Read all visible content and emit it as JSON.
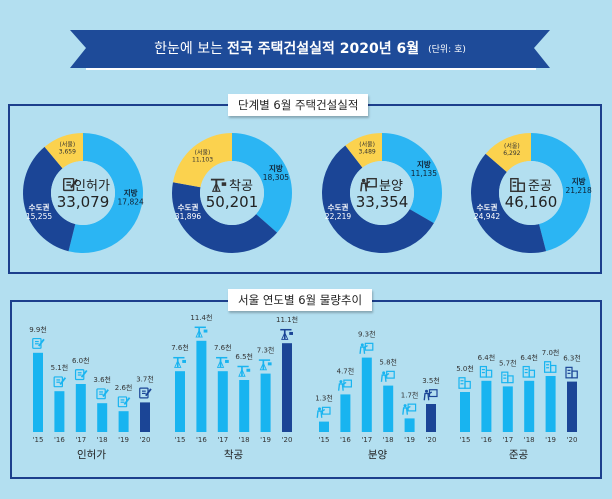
{
  "header": {
    "prefix": "한눈에 보는",
    "bold": "전국 주택건설실적 2020년 6월",
    "unit": "(단위: 호)"
  },
  "colors": {
    "local": "#2bb5f3",
    "capital": "#1b4596",
    "seoul": "#fbd24e",
    "bar": "#18b4f0",
    "bar_current": "#1b4596",
    "frame": "#1c3f8c",
    "background": "#b3dff0"
  },
  "section1_title": "단계별 6월 주택건설실적",
  "section2_title": "서울 연도별 6월 물량추이",
  "chart_data": [
    {
      "type": "pie",
      "donut": true,
      "title": "인허가",
      "icon": "document-pen-icon",
      "total": "33,079",
      "slices": [
        {
          "name": "지방",
          "value": 17824,
          "label": "17,824"
        },
        {
          "name": "수도권",
          "value": 15255,
          "label": "15,255"
        },
        {
          "name": "(서울)",
          "value": 3659,
          "label": "3,659",
          "subset_of": "수도권"
        }
      ]
    },
    {
      "type": "pie",
      "donut": true,
      "title": "착공",
      "icon": "crane-icon",
      "total": "50,201",
      "slices": [
        {
          "name": "지방",
          "value": 18305,
          "label": "18,305"
        },
        {
          "name": "수도권",
          "value": 31896,
          "label": "31,896"
        },
        {
          "name": "(서울)",
          "value": 11103,
          "label": "11,103",
          "subset_of": "수도권"
        }
      ]
    },
    {
      "type": "pie",
      "donut": true,
      "title": "분양",
      "icon": "presentation-icon",
      "total": "33,354",
      "slices": [
        {
          "name": "지방",
          "value": 11135,
          "label": "11,135"
        },
        {
          "name": "수도권",
          "value": 22219,
          "label": "22,219"
        },
        {
          "name": "(서울)",
          "value": 3489,
          "label": "3,489",
          "subset_of": "수도권"
        }
      ]
    },
    {
      "type": "pie",
      "donut": true,
      "title": "준공",
      "icon": "building-icon",
      "total": "46,160",
      "slices": [
        {
          "name": "지방",
          "value": 21218,
          "label": "21,218"
        },
        {
          "name": "수도권",
          "value": 24942,
          "label": "24,942"
        },
        {
          "name": "(서울)",
          "value": 6292,
          "label": "6,292",
          "subset_of": "수도권"
        }
      ]
    },
    {
      "type": "bar",
      "title": "인허가",
      "icon": "document-pen-icon",
      "categories": [
        "'15",
        "'16",
        "'17",
        "'18",
        "'19",
        "'20"
      ],
      "values": [
        9.9,
        5.1,
        6.0,
        3.6,
        2.6,
        3.7
      ],
      "labels": [
        "9.9천",
        "5.1천",
        "6.0천",
        "3.6천",
        "2.6천",
        "3.7천"
      ]
    },
    {
      "type": "bar",
      "title": "착공",
      "icon": "crane-icon",
      "categories": [
        "'15",
        "'16",
        "'17",
        "'18",
        "'19",
        "'20"
      ],
      "values": [
        7.6,
        11.4,
        7.6,
        6.5,
        7.3,
        11.1
      ],
      "labels": [
        "7.6천",
        "11.4천",
        "7.6천",
        "6.5천",
        "7.3천",
        "11.1천"
      ]
    },
    {
      "type": "bar",
      "title": "분양",
      "icon": "presentation-icon",
      "categories": [
        "'15",
        "'16",
        "'17",
        "'18",
        "'19",
        "'20"
      ],
      "values": [
        1.3,
        4.7,
        9.3,
        5.8,
        1.7,
        3.5
      ],
      "labels": [
        "1.3천",
        "4.7천",
        "9.3천",
        "5.8천",
        "1.7천",
        "3.5천"
      ]
    },
    {
      "type": "bar",
      "title": "준공",
      "icon": "building-icon",
      "categories": [
        "'15",
        "'16",
        "'17",
        "'18",
        "'19",
        "'20"
      ],
      "values": [
        5.0,
        6.4,
        5.7,
        6.4,
        7.0,
        6.3
      ],
      "labels": [
        "5.0천",
        "6.4천",
        "5.7천",
        "6.4천",
        "7.0천",
        "6.3천"
      ]
    }
  ]
}
